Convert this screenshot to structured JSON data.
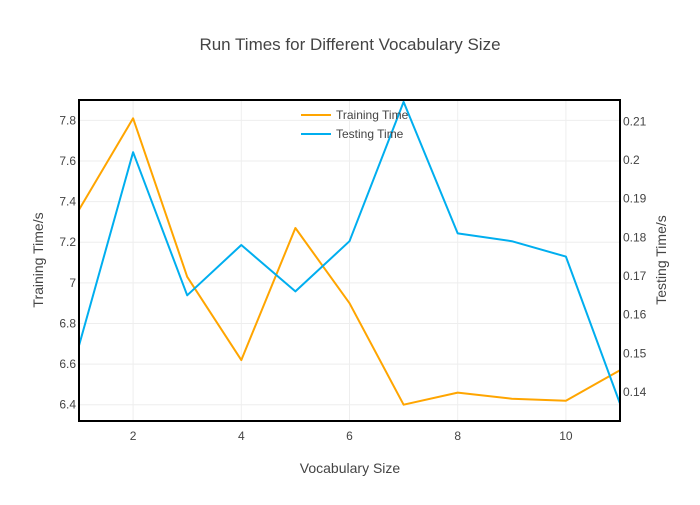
{
  "chart_data": {
    "type": "line",
    "title": "Run Times for Different Vocabulary Size",
    "xlabel": "Vocabulary Size",
    "ylabel_left": "Training Time/s",
    "ylabel_right": "Testing Time/s",
    "x": [
      1,
      2,
      3,
      4,
      5,
      6,
      7,
      8,
      9,
      10,
      11
    ],
    "xlim": [
      1,
      11
    ],
    "ylim_left": [
      6.32,
      7.9
    ],
    "ylim_right": [
      0.1325,
      0.2155
    ],
    "xticks": [
      2,
      4,
      6,
      8,
      10
    ],
    "yticks_left": [
      6.4,
      6.6,
      6.8,
      7,
      7.2,
      7.4,
      7.6,
      7.8
    ],
    "yticks_right": [
      0.14,
      0.15,
      0.16,
      0.17,
      0.18,
      0.19,
      0.2,
      0.21
    ],
    "grid": true,
    "legend_position": "top-center",
    "series": [
      {
        "name": "Training Time",
        "axis": "left",
        "color": "#FFA500",
        "values": [
          7.36,
          7.81,
          7.03,
          6.62,
          7.27,
          6.9,
          6.4,
          6.46,
          6.43,
          6.42,
          6.57
        ]
      },
      {
        "name": "Testing Time",
        "axis": "right",
        "color": "#00AEEF",
        "values": [
          0.152,
          0.202,
          0.165,
          0.178,
          0.166,
          0.179,
          0.215,
          0.181,
          0.179,
          0.175,
          0.137
        ]
      }
    ]
  }
}
